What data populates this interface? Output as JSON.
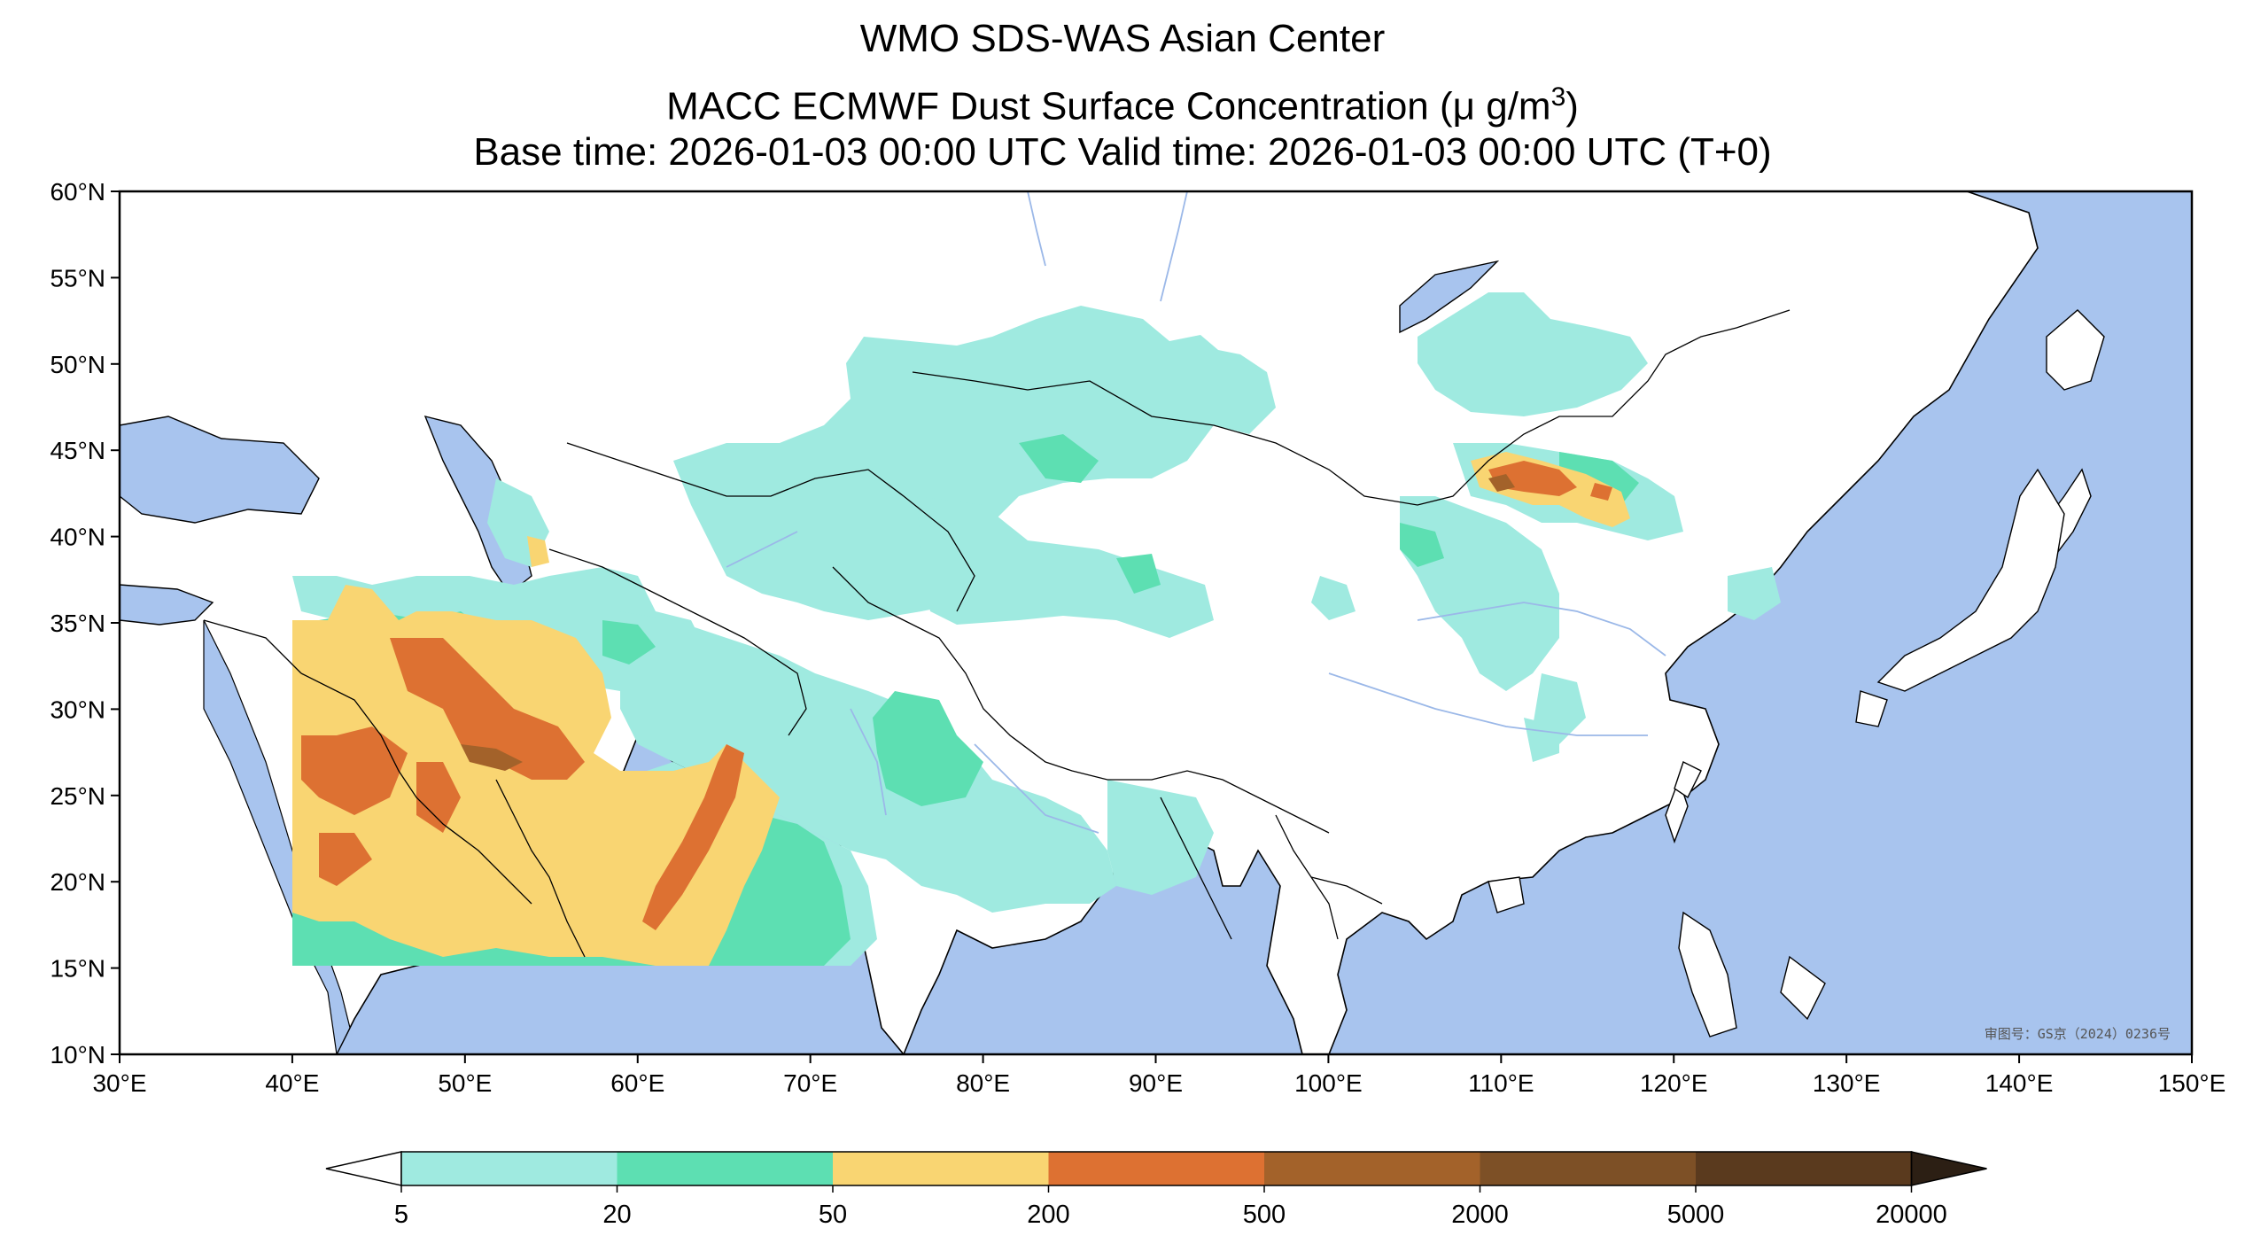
{
  "titles": {
    "line1": "WMO SDS-WAS Asian Center",
    "line2_main": "MACC ECMWF Dust Surface Concentration (",
    "line2_unit": "μ g/m",
    "line2_sup": "3",
    "line2_close": ")",
    "line3": "Base time: 2026-01-03 00:00 UTC Valid time: 2026-01-03 00:00 UTC (T+0)"
  },
  "map": {
    "lon_range": [
      30,
      150
    ],
    "lat_range": [
      10,
      60
    ],
    "lon_ticks": [
      {
        "value": 30,
        "label": "30°E"
      },
      {
        "value": 40,
        "label": "40°E"
      },
      {
        "value": 50,
        "label": "50°E"
      },
      {
        "value": 60,
        "label": "60°E"
      },
      {
        "value": 70,
        "label": "70°E"
      },
      {
        "value": 80,
        "label": "80°E"
      },
      {
        "value": 90,
        "label": "90°E"
      },
      {
        "value": 100,
        "label": "100°E"
      },
      {
        "value": 110,
        "label": "110°E"
      },
      {
        "value": 120,
        "label": "120°E"
      },
      {
        "value": 130,
        "label": "130°E"
      },
      {
        "value": 140,
        "label": "140°E"
      },
      {
        "value": 150,
        "label": "150°E"
      }
    ],
    "lat_ticks": [
      {
        "value": 60,
        "label": "60°N"
      },
      {
        "value": 55,
        "label": "55°N"
      },
      {
        "value": 50,
        "label": "50°N"
      },
      {
        "value": 45,
        "label": "45°N"
      },
      {
        "value": 40,
        "label": "40°N"
      },
      {
        "value": 35,
        "label": "35°N"
      },
      {
        "value": 30,
        "label": "30°N"
      },
      {
        "value": 25,
        "label": "25°N"
      },
      {
        "value": 20,
        "label": "20°N"
      },
      {
        "value": 15,
        "label": "15°N"
      },
      {
        "value": 10,
        "label": "10°N"
      }
    ],
    "credit": "审图号：GS京（2024）0236号",
    "colors": {
      "ocean": "#a8c4ee",
      "land": "#ffffff",
      "border": "#000000"
    }
  },
  "colorbar": {
    "levels": [
      "5",
      "20",
      "50",
      "200",
      "500",
      "2000",
      "5000",
      "20000"
    ],
    "colors": [
      "#9feae0",
      "#5ddfb2",
      "#f9d572",
      "#dd7132",
      "#a3622a",
      "#7d5026",
      "#5a3a1e",
      "#2c1f14"
    ],
    "under_color": "#ffffff",
    "over_color": "#111111"
  }
}
